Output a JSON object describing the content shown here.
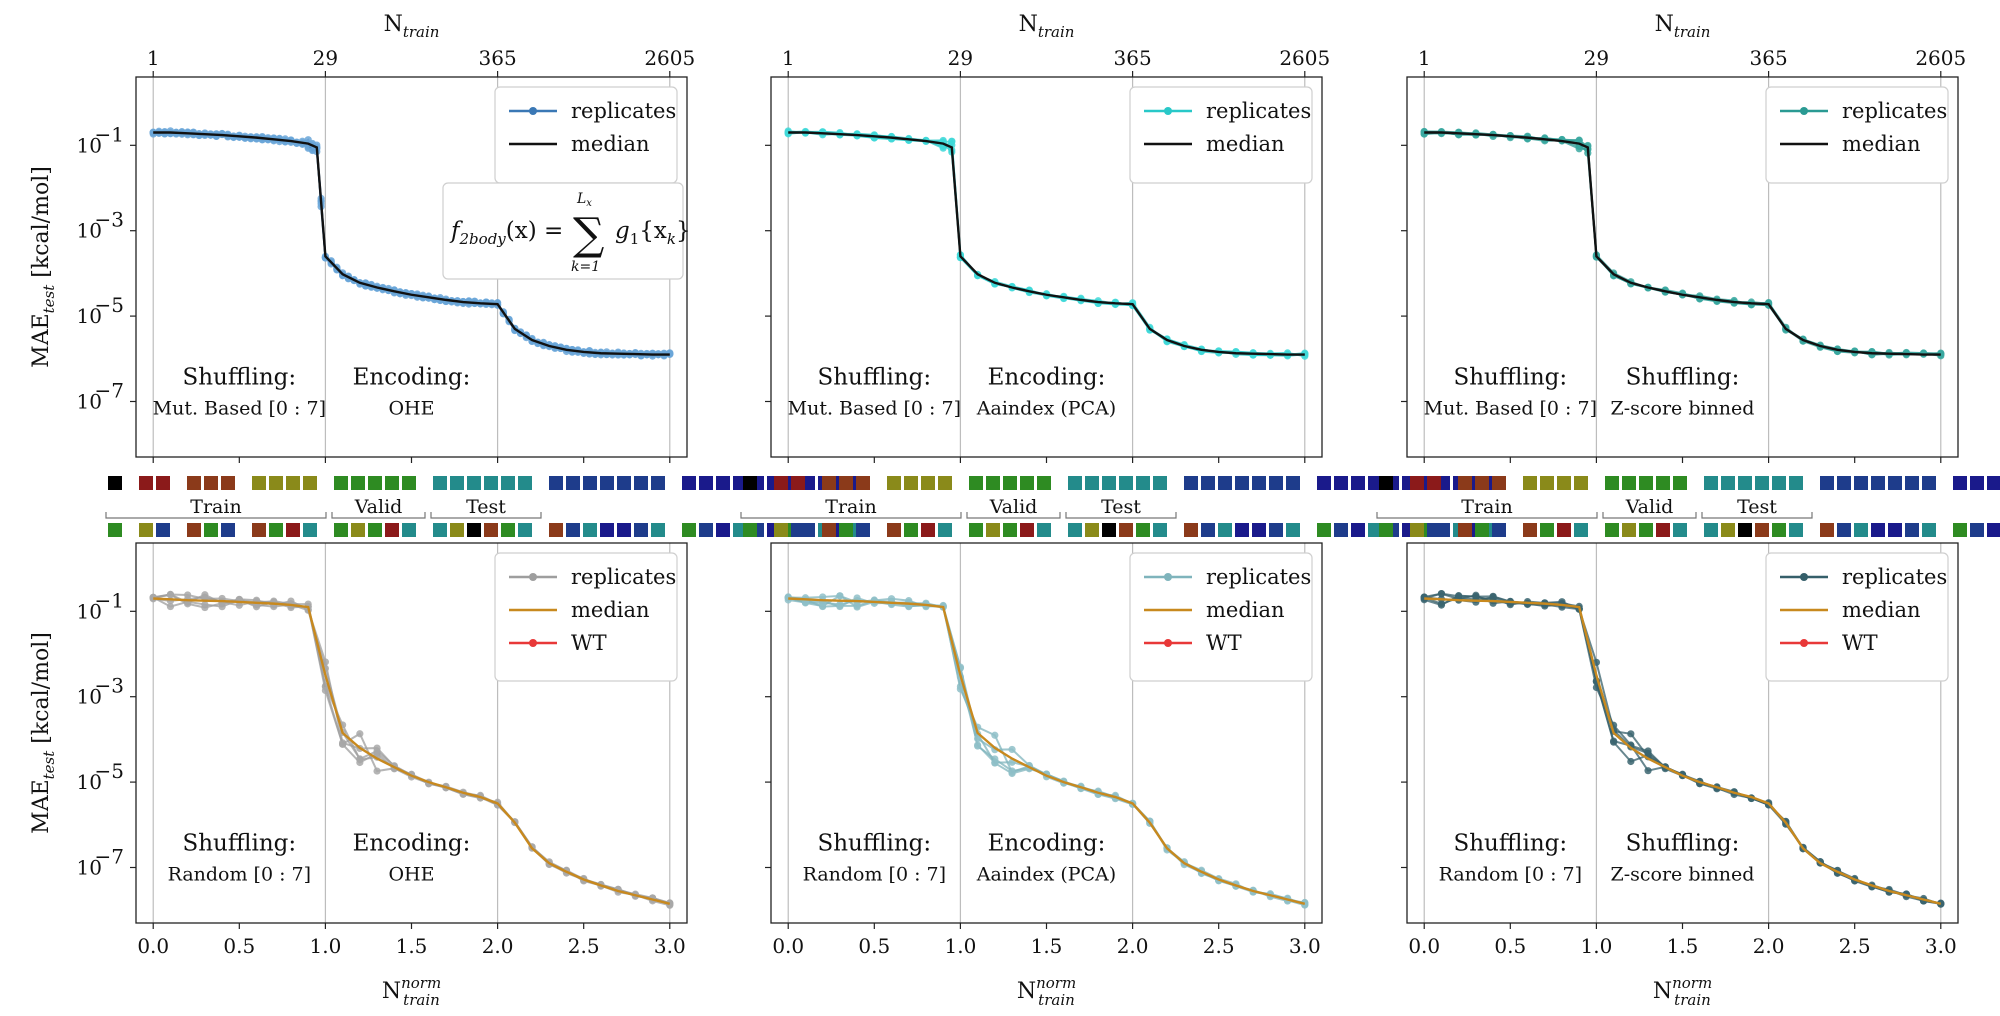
{
  "chart_data": {
    "type": "line",
    "layout": "2 rows x 3 columns",
    "x_top_label": "N",
    "x_top_sub": "train",
    "x_bottom_label": "N",
    "x_bottom_sup": "norm",
    "x_bottom_sub": "train",
    "y_label": "MAE",
    "y_label_sub": "test",
    "y_label_unit": " [kcal/mol]",
    "x_range": [
      -0.1,
      3.1
    ],
    "y_range_log10": [
      -8.3,
      0.6
    ],
    "x_ticks_bottom": [
      0.0,
      0.5,
      1.0,
      1.5,
      2.0,
      2.5,
      3.0
    ],
    "x_tick_labels_bottom": [
      "0.0",
      "0.5",
      "1.0",
      "1.5",
      "2.0",
      "2.5",
      "3.0"
    ],
    "x_ticks_top_pos": [
      0,
      1,
      2,
      3
    ],
    "x_tick_labels_top": [
      "1",
      "29",
      "365",
      "2605"
    ],
    "y_ticks_log10": [
      -1,
      -3,
      -5,
      -7
    ],
    "y_tick_labels": [
      "10",
      "10",
      "10",
      "10"
    ],
    "y_tick_exps": [
      "−1",
      "−3",
      "−5",
      "−7"
    ],
    "split_labels": {
      "train": "Train",
      "valid": "Valid",
      "test": "Test"
    },
    "formula": {
      "lhs": "f",
      "lhs_sub": "2body",
      "lhs_arg": "(x) =",
      "sum_top": "L",
      "sum_top_sub": "x",
      "sum_bottom": "k=1",
      "rhs": "g",
      "rhs_sub": "1",
      "rhs_arg": "{x",
      "rhs_arg_sub": "k",
      "rhs_close": "}"
    },
    "panels": [
      {
        "row": 0,
        "col": 0,
        "line_color": "#3a78b5",
        "marker_color": "#6aa6d8",
        "median_color": "#111111",
        "legend": [
          "replicates",
          "median"
        ],
        "annot": [
          {
            "t1": "Shuffling:",
            "t2": "Mut. Based [0 : 7]"
          },
          {
            "t1": "Encoding:",
            "t2": "OHE"
          }
        ],
        "show_formula": true
      },
      {
        "row": 0,
        "col": 1,
        "line_color": "#28c8c8",
        "marker_color": "#40d8d8",
        "median_color": "#111111",
        "legend": [
          "replicates",
          "median"
        ],
        "annot": [
          {
            "t1": "Shuffling:",
            "t2": "Mut. Based [0 : 7]"
          },
          {
            "t1": "Encoding:",
            "t2": "Aaindex (PCA)"
          }
        ],
        "show_formula": false
      },
      {
        "row": 0,
        "col": 2,
        "line_color": "#2a9a93",
        "marker_color": "#3aa8a0",
        "median_color": "#111111",
        "legend": [
          "replicates",
          "median"
        ],
        "annot": [
          {
            "t1": "Shuffling:",
            "t2": "Mut. Based [0 : 7]"
          },
          {
            "t1": "Shuffling:",
            "t2": "Z-score binned"
          }
        ],
        "show_formula": false
      },
      {
        "row": 1,
        "col": 0,
        "line_color": "#9e9e9e",
        "marker_color": "#a8a8a8",
        "median_color": "#c8891e",
        "wt_color": "#e83838",
        "legend": [
          "replicates",
          "median",
          "WT"
        ],
        "annot": [
          {
            "t1": "Shuffling:",
            "t2": "Random [0 : 7]"
          },
          {
            "t1": "Encoding:",
            "t2": "OHE"
          }
        ],
        "show_formula": false
      },
      {
        "row": 1,
        "col": 1,
        "line_color": "#7fb4bc",
        "marker_color": "#8fc0c8",
        "median_color": "#c8891e",
        "wt_color": "#e83838",
        "legend": [
          "replicates",
          "median",
          "WT"
        ],
        "annot": [
          {
            "t1": "Shuffling:",
            "t2": "Random [0 : 7]"
          },
          {
            "t1": "Encoding:",
            "t2": "Aaindex (PCA)"
          }
        ],
        "show_formula": false
      },
      {
        "row": 1,
        "col": 2,
        "line_color": "#355f6a",
        "marker_color": "#3b6570",
        "median_color": "#c8891e",
        "wt_color": "#e83838",
        "legend": [
          "replicates",
          "median",
          "WT"
        ],
        "annot": [
          {
            "t1": "Shuffling:",
            "t2": "Random [0 : 7]"
          },
          {
            "t1": "Shuffling:",
            "t2": "Z-score binned"
          }
        ],
        "show_formula": false
      }
    ],
    "top_median_x": [
      0,
      0.1,
      0.2,
      0.3,
      0.4,
      0.5,
      0.6,
      0.7,
      0.8,
      0.9,
      0.95,
      1.0,
      1.1,
      1.2,
      1.3,
      1.4,
      1.5,
      1.6,
      1.7,
      1.8,
      1.9,
      2.0,
      2.1,
      2.2,
      2.3,
      2.4,
      2.5,
      2.6,
      2.7,
      2.8,
      2.9,
      3.0
    ],
    "top_median_log10": [
      -0.7,
      -0.7,
      -0.72,
      -0.74,
      -0.76,
      -0.79,
      -0.82,
      -0.86,
      -0.9,
      -0.96,
      -1.05,
      -3.6,
      -4.02,
      -4.22,
      -4.33,
      -4.42,
      -4.5,
      -4.56,
      -4.62,
      -4.67,
      -4.7,
      -4.72,
      -5.3,
      -5.56,
      -5.7,
      -5.79,
      -5.84,
      -5.87,
      -5.88,
      -5.89,
      -5.9,
      -5.9
    ],
    "bottom_median_x": [
      0,
      0.1,
      0.2,
      0.3,
      0.4,
      0.5,
      0.6,
      0.7,
      0.8,
      0.9,
      1.0,
      1.1,
      1.2,
      1.3,
      1.4,
      1.5,
      1.6,
      1.7,
      1.8,
      1.9,
      2.0,
      2.1,
      2.2,
      2.3,
      2.4,
      2.5,
      2.6,
      2.7,
      2.8,
      2.9,
      3.0
    ],
    "bottom_median_log10": [
      -0.7,
      -0.72,
      -0.74,
      -0.75,
      -0.76,
      -0.78,
      -0.8,
      -0.82,
      -0.85,
      -0.9,
      -2.5,
      -3.85,
      -4.2,
      -4.45,
      -4.65,
      -4.85,
      -5.0,
      -5.12,
      -5.25,
      -5.35,
      -5.5,
      -5.95,
      -6.55,
      -6.9,
      -7.1,
      -7.28,
      -7.42,
      -7.55,
      -7.65,
      -7.75,
      -7.85
    ],
    "replicate_count": 5
  },
  "encodings": {
    "row1": [
      [
        "#000000"
      ],
      [
        "#8b1a1a",
        "#8b1a1a"
      ],
      [
        "#8b3a1a",
        "#8b3a1a",
        "#8b3a1a"
      ],
      [
        "#8a8a1a",
        "#8a8a1a",
        "#8a8a1a",
        "#8a8a1a"
      ],
      [
        "#2e8b22",
        "#2e8b22",
        "#2e8b22",
        "#2e8b22",
        "#2e8b22"
      ],
      [
        "#238b8b",
        "#238b8b",
        "#238b8b",
        "#238b8b",
        "#238b8b",
        "#238b8b"
      ],
      [
        "#1e3c8b",
        "#1e3c8b",
        "#1e3c8b",
        "#1e3c8b",
        "#1e3c8b",
        "#1e3c8b",
        "#1e3c8b"
      ],
      [
        "#1a1a8b",
        "#1a1a8b",
        "#1a1a8b",
        "#1a1a8b",
        "#1a1a8b",
        "#1a1a8b",
        "#1a1a8b",
        "#1a1a8b",
        "#1a1a8b",
        "#1a1a8b",
        "#1a1a8b"
      ]
    ],
    "row2": [
      [
        "#2e8b22"
      ],
      [
        "#8a8a1a",
        "#1e3c8b"
      ],
      [
        "#8b3a1a",
        "#2e8b22",
        "#1e3c8b"
      ],
      [
        "#8b3a1a",
        "#2e8b22",
        "#8b1a1a",
        "#238b8b"
      ],
      [
        "#2e8b22",
        "#8a8a1a",
        "#2e8b22",
        "#8b1a1a",
        "#238b8b"
      ],
      [
        "#238b8b",
        "#8a8a1a",
        "#000000",
        "#8b3a1a",
        "#2e8b22",
        "#238b8b"
      ],
      [
        "#8b3a1a",
        "#1e3c8b",
        "#238b8b",
        "#1a1a8b",
        "#1a1a8b",
        "#1e3c8b",
        "#238b8b"
      ],
      [
        "#2e8b22",
        "#1e3c8b",
        "#1a1a8b",
        "#238b8b",
        "#1e3c8b",
        "#1a1a8b",
        "#2e8b22",
        "#1e3c8b",
        "#238b8b",
        "#1a1a8b",
        "#238b8b"
      ]
    ]
  }
}
